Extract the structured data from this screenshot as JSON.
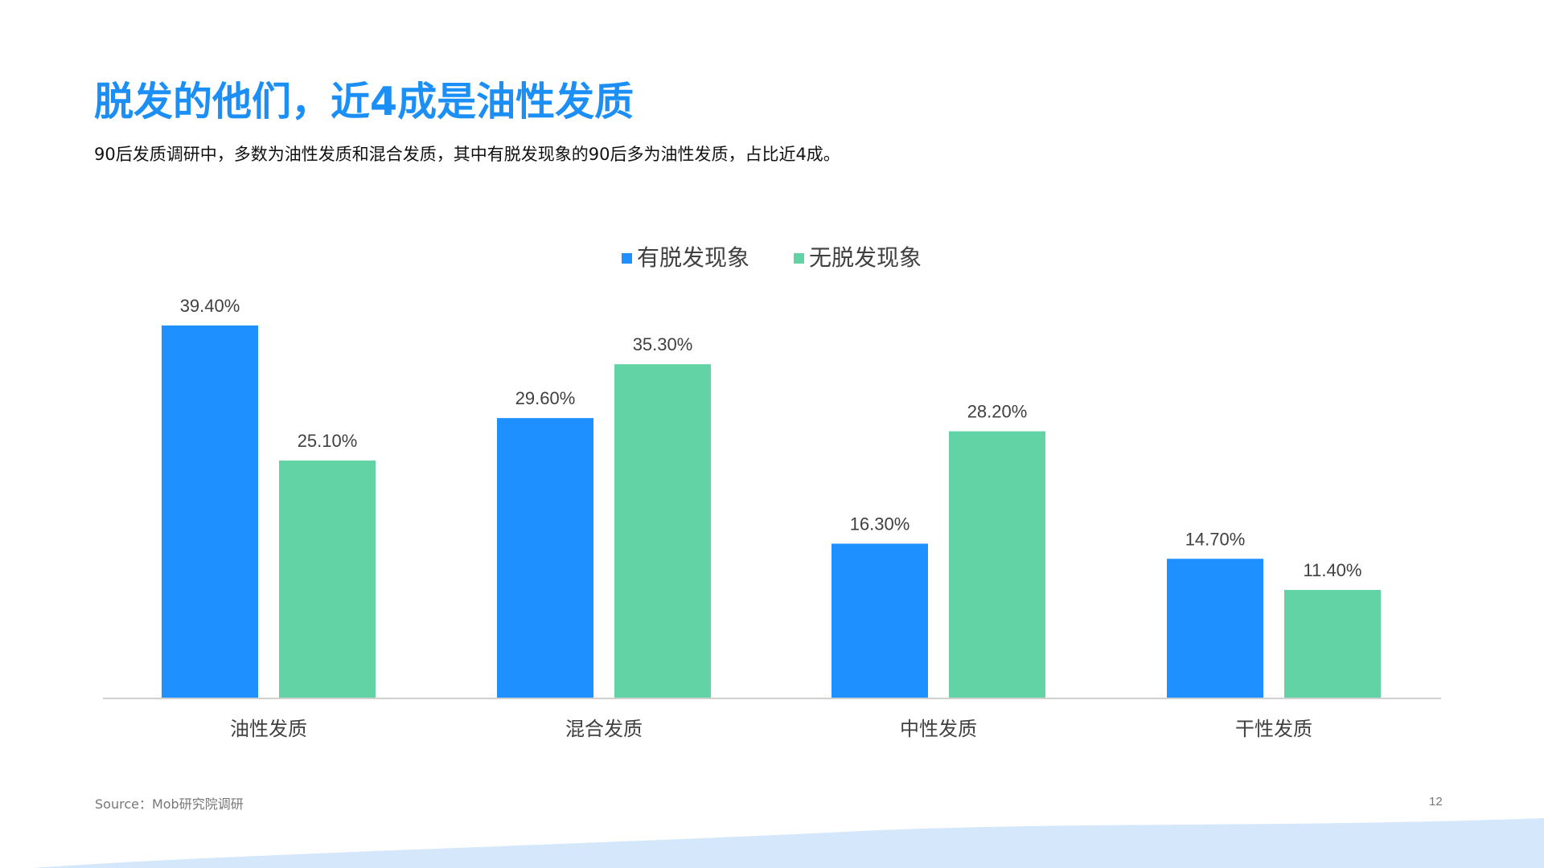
{
  "title": "脱发的他们，近4成是油性发质",
  "subtitle": "90后发质调研中，多数为油性发质和混合发质，其中有脱发现象的90后多为油性发质，占比近4成。",
  "source": "Source：Mob研究院调研",
  "page_number": "12",
  "colors": {
    "accent": "#1b8ff5",
    "series_1": "#1e90ff",
    "series_2": "#62d3a4",
    "wave": "#d4e7fb"
  },
  "chart_data": {
    "type": "bar",
    "title": "",
    "xlabel": "",
    "ylabel": "",
    "ylim": [
      0,
      45
    ],
    "grid": false,
    "legend_position": "top-center",
    "categories": [
      "油性发质",
      "混合发质",
      "中性发质",
      "干性发质"
    ],
    "series": [
      {
        "name": "有脱发现象",
        "values": [
          39.4,
          29.6,
          16.3,
          14.7
        ],
        "labels": [
          "39.40%",
          "29.60%",
          "16.30%",
          "14.70%"
        ]
      },
      {
        "name": "无脱发现象",
        "values": [
          25.1,
          35.3,
          28.2,
          11.4
        ],
        "labels": [
          "25.10%",
          "35.30%",
          "28.20%",
          "11.40%"
        ]
      }
    ]
  }
}
